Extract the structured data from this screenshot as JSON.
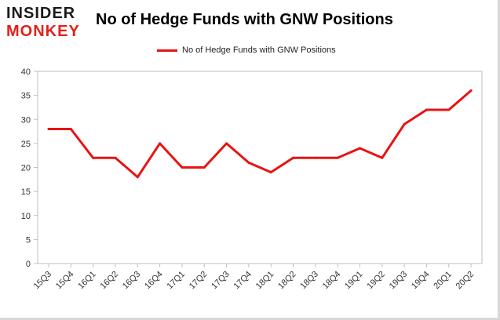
{
  "logo": {
    "line1": "INSIDER",
    "line2": "MONKEY"
  },
  "colors": {
    "series": "#e81313",
    "plot_border": "#bfbfbf",
    "grid": "#d9d9d9",
    "text": "#333333"
  },
  "chart_data": {
    "type": "line",
    "title": "No of Hedge Funds with GNW Positions",
    "legend_position": "top-center",
    "grid": false,
    "x": [
      "15Q3",
      "15Q4",
      "16Q1",
      "16Q2",
      "16Q3",
      "16Q4",
      "17Q1",
      "17Q2",
      "17Q3",
      "17Q4",
      "18Q1",
      "18Q2",
      "18Q3",
      "18Q4",
      "19Q1",
      "19Q2",
      "19Q3",
      "19Q4",
      "20Q1",
      "20Q2"
    ],
    "series": [
      {
        "name": "No of Hedge Funds with GNW Positions",
        "values": [
          28,
          28,
          22,
          22,
          18,
          25,
          20,
          20,
          25,
          21,
          19,
          22,
          22,
          22,
          24,
          22,
          29,
          32,
          32,
          36
        ]
      }
    ],
    "ylim": [
      0,
      40
    ],
    "yticks": [
      0,
      5,
      10,
      15,
      20,
      25,
      30,
      35,
      40
    ],
    "xlabel": "",
    "ylabel": ""
  }
}
